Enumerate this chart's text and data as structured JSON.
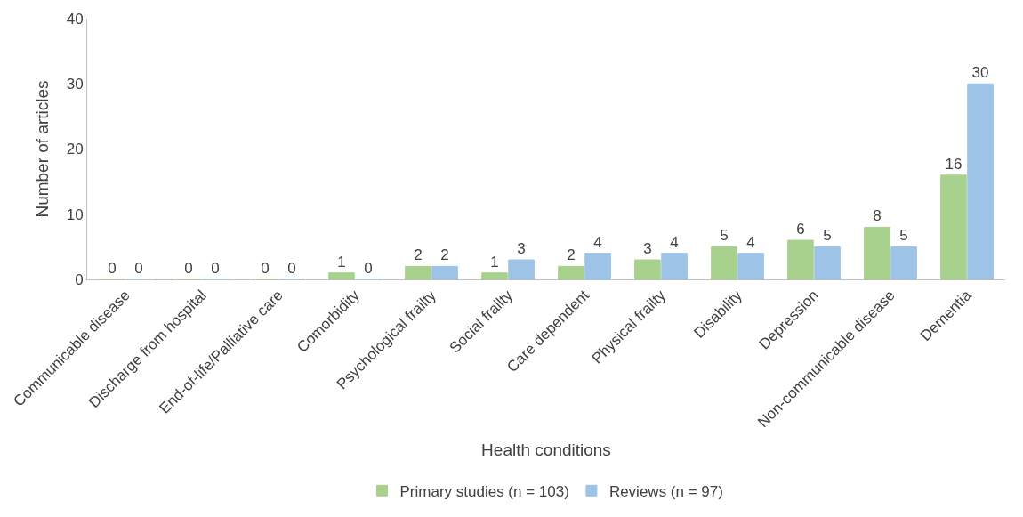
{
  "chart_data": {
    "type": "bar",
    "xlabel": "Health conditions",
    "ylabel": "Number of articles",
    "categories": [
      "Communicable disease",
      "Discharge from hospital",
      "End-of-life/Palliative care",
      "Comorbidity",
      "Psychological frailty",
      "Social frailty",
      "Care dependent",
      "Physical frailty",
      "Disability",
      "Depression",
      "Non-communicable disease",
      "Dementia"
    ],
    "series": [
      {
        "name": "Primary studies (n = 103)",
        "color": "#a9d18e",
        "values": [
          0,
          0,
          0,
          1,
          2,
          1,
          2,
          3,
          5,
          6,
          8,
          16
        ]
      },
      {
        "name": "Reviews (n = 97)",
        "color": "#9dc3e6",
        "values": [
          0,
          0,
          0,
          0,
          2,
          3,
          4,
          4,
          4,
          5,
          5,
          30
        ]
      }
    ],
    "ylim": [
      0,
      40
    ],
    "yticks": [
      0,
      10,
      20,
      30,
      40
    ],
    "legend": "bottom",
    "data_labels": true
  }
}
